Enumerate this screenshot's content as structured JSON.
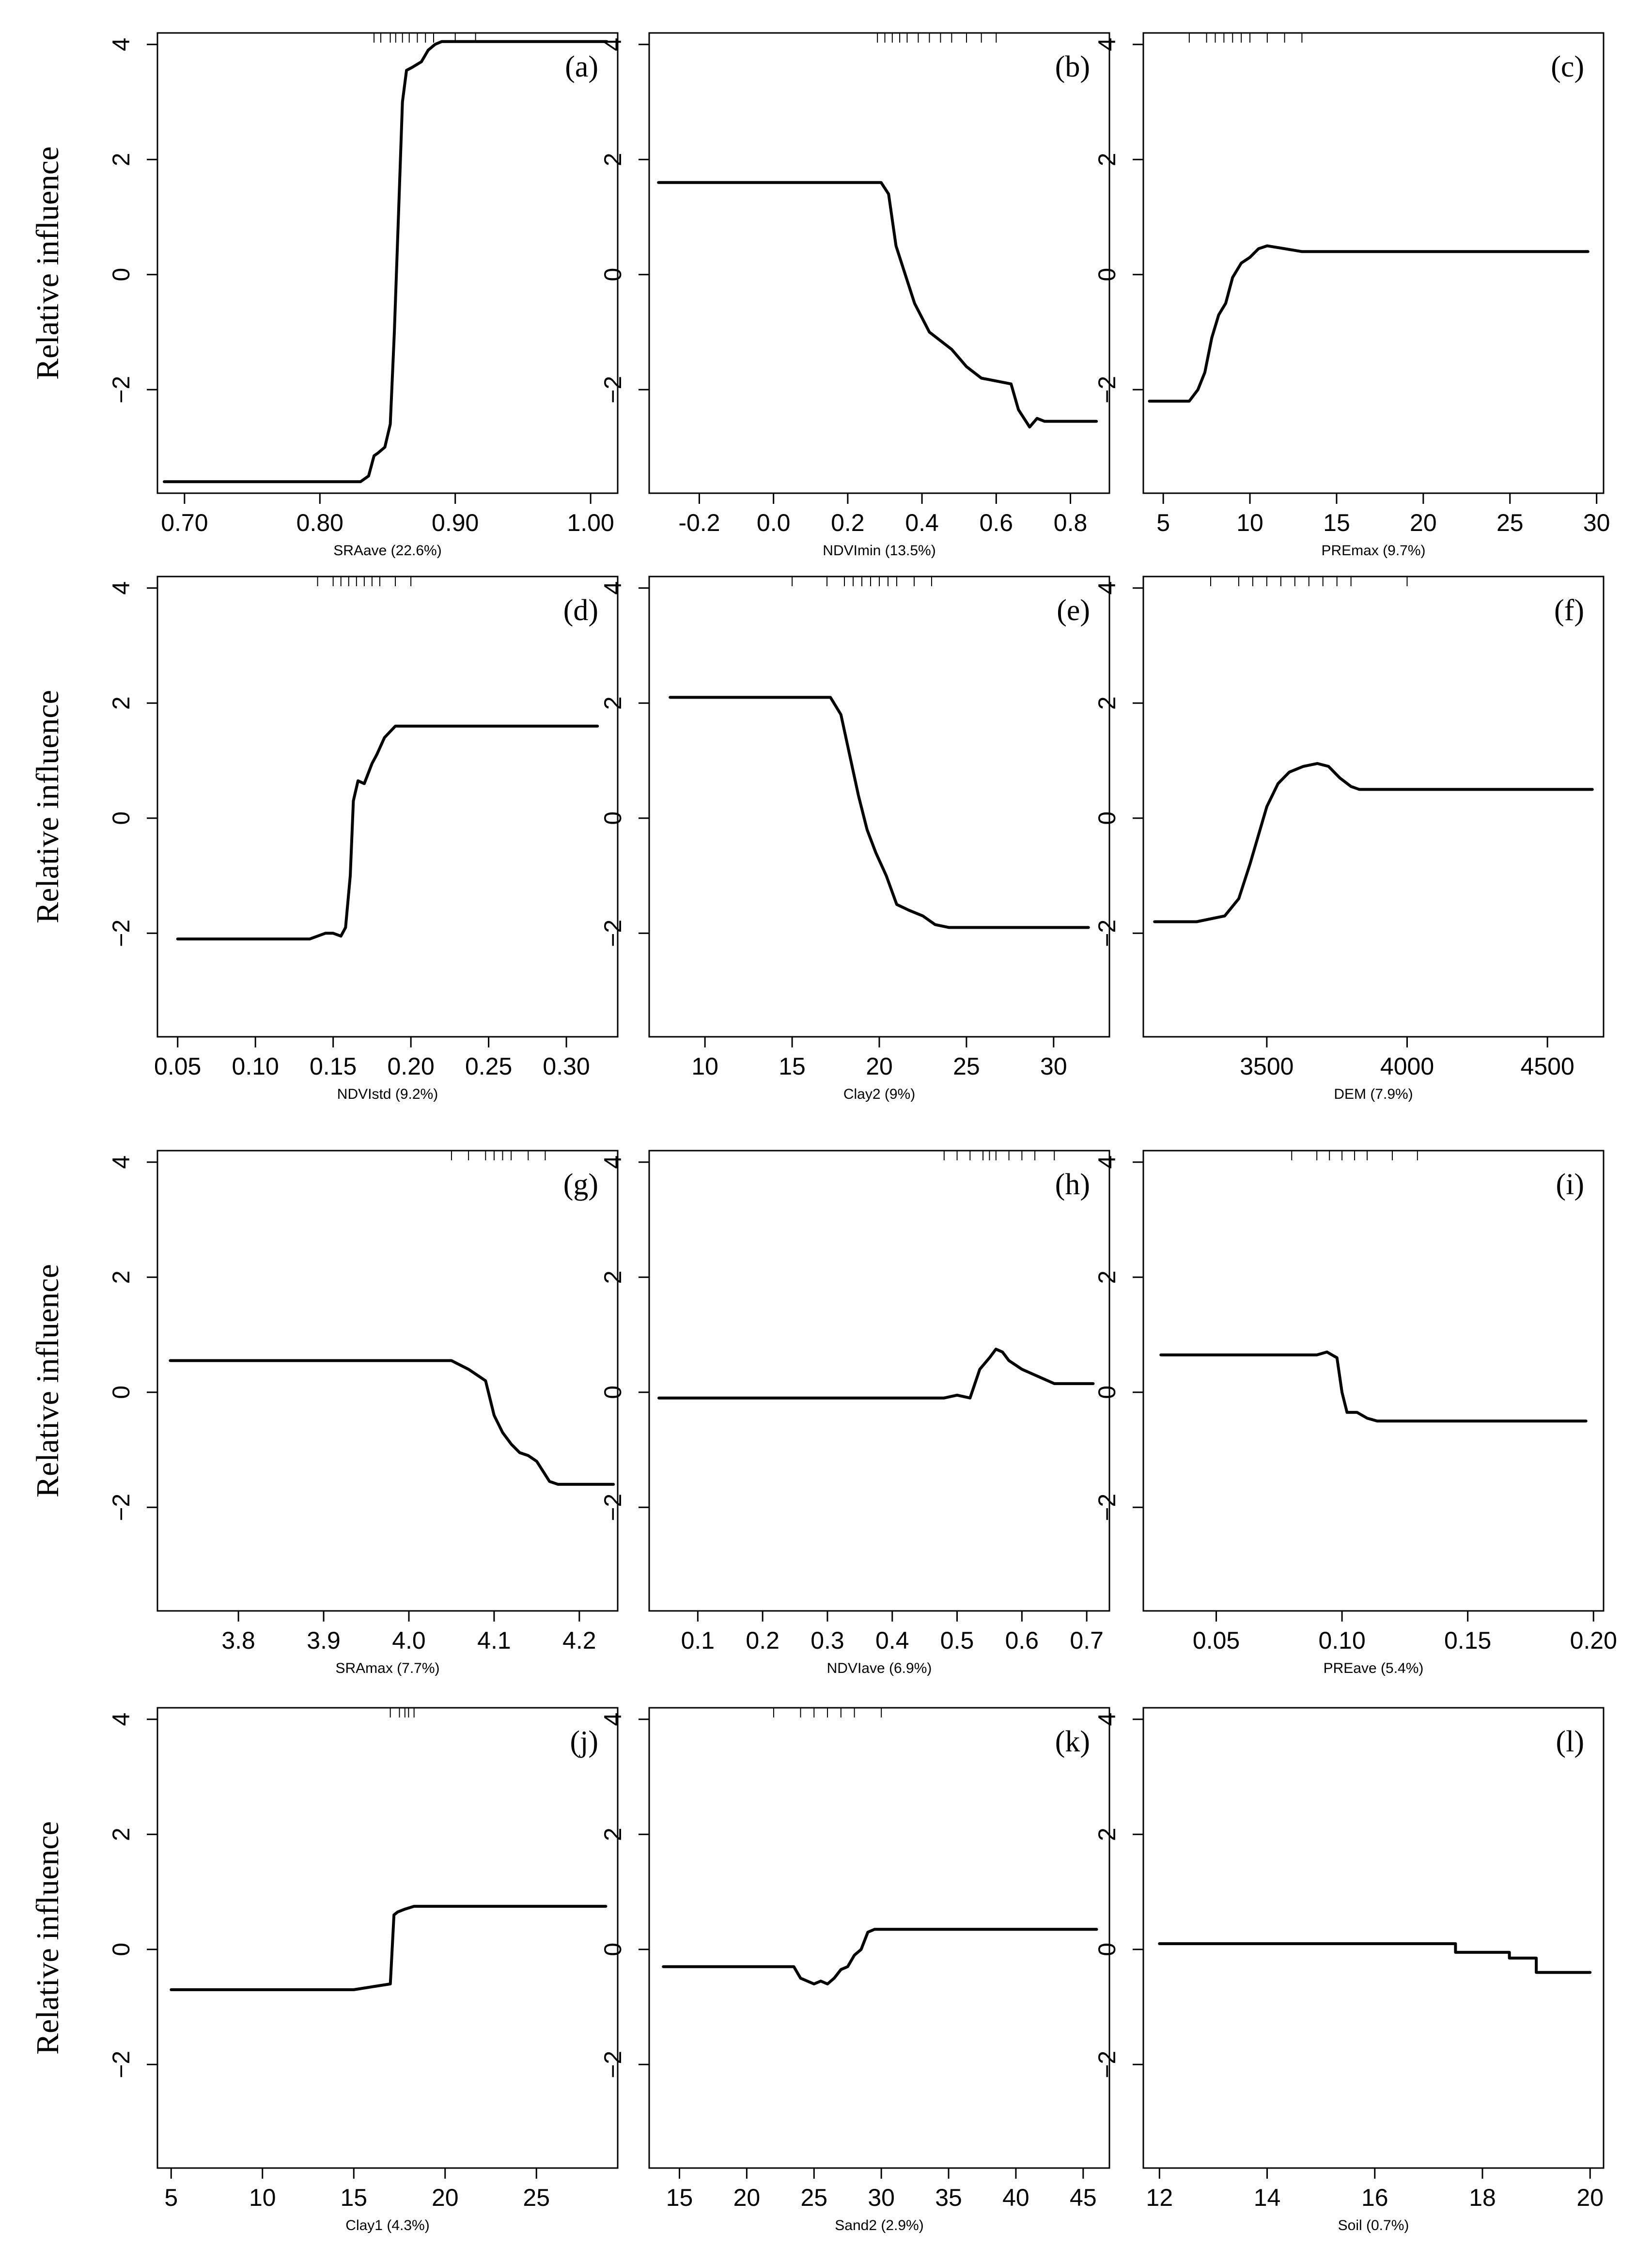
{
  "figure": {
    "ylabel": "Relative influence"
  },
  "chart_data": [
    {
      "type": "line",
      "panel": "(a)",
      "xlabel": "SRAave  (22.6%)",
      "ylabel": "Relative influence",
      "xlim": [
        0.68,
        1.02
      ],
      "ylim": [
        -3.8,
        4.2
      ],
      "xticks": [
        {
          "v": 0.7,
          "t": "0.70"
        },
        {
          "v": 0.8,
          "t": "0.80"
        },
        {
          "v": 0.9,
          "t": "0.90"
        },
        {
          "v": 1.0,
          "t": "1.00"
        }
      ],
      "yticks": [
        {
          "v": 4,
          "t": "4"
        },
        {
          "v": 2,
          "t": "2"
        },
        {
          "v": 0,
          "t": "0"
        },
        {
          "v": -2,
          "t": "−2"
        }
      ],
      "rug": [
        0.84,
        0.845,
        0.852,
        0.856,
        0.861,
        0.866,
        0.872,
        0.878,
        0.884,
        0.9,
        0.915
      ],
      "x": [
        0.685,
        0.83,
        0.836,
        0.84,
        0.843,
        0.848,
        0.852,
        0.855,
        0.858,
        0.861,
        0.864,
        0.868,
        0.875,
        0.88,
        0.885,
        0.89,
        1.012
      ],
      "y": [
        -3.6,
        -3.6,
        -3.5,
        -3.15,
        -3.1,
        -3.0,
        -2.6,
        -1.0,
        1.0,
        3.0,
        3.55,
        3.6,
        3.7,
        3.9,
        4.0,
        4.05,
        4.05
      ]
    },
    {
      "type": "line",
      "panel": "(b)",
      "xlabel": "NDVImin  (13.5%)",
      "ylabel": "Relative influence",
      "xlim": [
        -0.335,
        0.905
      ],
      "ylim": [
        -3.8,
        4.2
      ],
      "xticks": [
        {
          "v": -0.2,
          "t": "-0.2"
        },
        {
          "v": 0,
          "t": "0.0"
        },
        {
          "v": 0.2,
          "t": "0.2"
        },
        {
          "v": 0.4,
          "t": "0.4"
        },
        {
          "v": 0.6,
          "t": "0.6"
        },
        {
          "v": 0.8,
          "t": "0.8"
        }
      ],
      "yticks": [
        {
          "v": 4,
          "t": "4"
        },
        {
          "v": 2,
          "t": "2"
        },
        {
          "v": 0,
          "t": "0"
        },
        {
          "v": -2,
          "t": "−2"
        }
      ],
      "rug": [
        0.28,
        0.3,
        0.32,
        0.34,
        0.36,
        0.39,
        0.42,
        0.45,
        0.48,
        0.52,
        0.56,
        0.6
      ],
      "x": [
        -0.31,
        0.26,
        0.29,
        0.31,
        0.33,
        0.35,
        0.38,
        0.42,
        0.48,
        0.52,
        0.56,
        0.6,
        0.64,
        0.66,
        0.69,
        0.71,
        0.73,
        0.87
      ],
      "y": [
        1.6,
        1.6,
        1.6,
        1.4,
        0.5,
        0.1,
        -0.5,
        -1.0,
        -1.3,
        -1.6,
        -1.8,
        -1.85,
        -1.9,
        -2.35,
        -2.65,
        -2.5,
        -2.55,
        -2.55
      ]
    },
    {
      "type": "line",
      "panel": "(c)",
      "xlabel": "PREmax  (9.7%)",
      "ylabel": "Relative influence",
      "xlim": [
        3.85,
        30.4
      ],
      "ylim": [
        -3.8,
        4.2
      ],
      "xticks": [
        {
          "v": 5,
          "t": "5"
        },
        {
          "v": 10,
          "t": "10"
        },
        {
          "v": 15,
          "t": "15"
        },
        {
          "v": 20,
          "t": "20"
        },
        {
          "v": 25,
          "t": "25"
        },
        {
          "v": 30,
          "t": "30"
        }
      ],
      "yticks": [
        {
          "v": 4,
          "t": "4"
        },
        {
          "v": 2,
          "t": "2"
        },
        {
          "v": 0,
          "t": "0"
        },
        {
          "v": -2,
          "t": "−2"
        }
      ],
      "rug": [
        6.5,
        7.5,
        8.0,
        8.5,
        9.0,
        9.5,
        10.0,
        11.0,
        12.0,
        13.0
      ],
      "x": [
        4.2,
        6.5,
        7.0,
        7.4,
        7.8,
        8.2,
        8.6,
        9.0,
        9.5,
        10.0,
        10.5,
        11.0,
        12.0,
        13.0,
        29.5
      ],
      "y": [
        -2.2,
        -2.2,
        -2.0,
        -1.7,
        -1.1,
        -0.7,
        -0.5,
        -0.05,
        0.2,
        0.3,
        0.45,
        0.5,
        0.45,
        0.4,
        0.4
      ]
    },
    {
      "type": "line",
      "panel": "(d)",
      "xlabel": "NDVIstd  (9.2%)",
      "ylabel": "Relative influence",
      "xlim": [
        0.037,
        0.333
      ],
      "ylim": [
        -3.8,
        4.2
      ],
      "xticks": [
        {
          "v": 0.05,
          "t": "0.05"
        },
        {
          "v": 0.1,
          "t": "0.10"
        },
        {
          "v": 0.15,
          "t": "0.15"
        },
        {
          "v": 0.2,
          "t": "0.20"
        },
        {
          "v": 0.25,
          "t": "0.25"
        },
        {
          "v": 0.3,
          "t": "0.30"
        }
      ],
      "yticks": [
        {
          "v": 4,
          "t": "4"
        },
        {
          "v": 2,
          "t": "2"
        },
        {
          "v": 0,
          "t": "0"
        },
        {
          "v": -2,
          "t": "−2"
        }
      ],
      "rug": [
        0.14,
        0.15,
        0.155,
        0.16,
        0.165,
        0.17,
        0.175,
        0.18,
        0.19,
        0.2
      ],
      "x": [
        0.05,
        0.135,
        0.145,
        0.15,
        0.155,
        0.158,
        0.161,
        0.163,
        0.166,
        0.17,
        0.175,
        0.178,
        0.183,
        0.19,
        0.32
      ],
      "y": [
        -2.1,
        -2.1,
        -2.0,
        -2.0,
        -2.05,
        -1.9,
        -1.0,
        0.3,
        0.65,
        0.6,
        0.95,
        1.1,
        1.4,
        1.6,
        1.6
      ]
    },
    {
      "type": "line",
      "panel": "(e)",
      "xlabel": "Clay2  (9%)",
      "ylabel": "Relative influence",
      "xlim": [
        6.8,
        33.2
      ],
      "ylim": [
        -3.8,
        4.2
      ],
      "xticks": [
        {
          "v": 10,
          "t": "10"
        },
        {
          "v": 15,
          "t": "15"
        },
        {
          "v": 20,
          "t": "20"
        },
        {
          "v": 25,
          "t": "25"
        },
        {
          "v": 30,
          "t": "30"
        }
      ],
      "yticks": [
        {
          "v": 4,
          "t": "4"
        },
        {
          "v": 2,
          "t": "2"
        },
        {
          "v": 0,
          "t": "0"
        },
        {
          "v": -2,
          "t": "−2"
        }
      ],
      "rug": [
        15,
        17,
        18,
        18.5,
        19,
        19.5,
        20,
        20.5,
        21,
        22,
        23
      ],
      "x": [
        8,
        17.2,
        17.8,
        18.3,
        18.8,
        19.3,
        19.8,
        20.4,
        21,
        21.7,
        22.5,
        23.2,
        24,
        32
      ],
      "y": [
        2.1,
        2.1,
        1.8,
        1.1,
        0.4,
        -0.2,
        -0.6,
        -1.0,
        -1.5,
        -1.6,
        -1.7,
        -1.85,
        -1.9,
        -1.9
      ]
    },
    {
      "type": "line",
      "panel": "(f)",
      "xlabel": "DEM  (7.9%)",
      "ylabel": "Relative influence",
      "xlim": [
        3060,
        4700
      ],
      "ylim": [
        -3.8,
        4.2
      ],
      "xticks": [
        {
          "v": 3500,
          "t": "3500"
        },
        {
          "v": 4000,
          "t": "4000"
        },
        {
          "v": 4500,
          "t": "4500"
        }
      ],
      "yticks": [
        {
          "v": 4,
          "t": "4"
        },
        {
          "v": 2,
          "t": "2"
        },
        {
          "v": 0,
          "t": "0"
        },
        {
          "v": -2,
          "t": "−2"
        }
      ],
      "rug": [
        3300,
        3400,
        3450,
        3500,
        3550,
        3600,
        3650,
        3700,
        3750,
        3800,
        4000
      ],
      "x": [
        3100,
        3250,
        3350,
        3400,
        3440,
        3470,
        3500,
        3540,
        3580,
        3630,
        3680,
        3720,
        3760,
        3800,
        3830,
        4660
      ],
      "y": [
        -1.8,
        -1.8,
        -1.7,
        -1.4,
        -0.8,
        -0.3,
        0.2,
        0.6,
        0.8,
        0.9,
        0.95,
        0.9,
        0.7,
        0.55,
        0.5,
        0.5
      ]
    },
    {
      "type": "line",
      "panel": "(g)",
      "xlabel": "SRAmax  (7.7%)",
      "ylabel": "Relative influence",
      "xlim": [
        3.705,
        4.245
      ],
      "ylim": [
        -3.8,
        4.2
      ],
      "xticks": [
        {
          "v": 3.8,
          "t": "3.8"
        },
        {
          "v": 3.9,
          "t": "3.9"
        },
        {
          "v": 4.0,
          "t": "4.0"
        },
        {
          "v": 4.1,
          "t": "4.1"
        },
        {
          "v": 4.2,
          "t": "4.2"
        }
      ],
      "yticks": [
        {
          "v": 4,
          "t": "4"
        },
        {
          "v": 2,
          "t": "2"
        },
        {
          "v": 0,
          "t": "0"
        },
        {
          "v": -2,
          "t": "−2"
        }
      ],
      "rug": [
        4.05,
        4.07,
        4.09,
        4.1,
        4.11,
        4.12,
        4.14,
        4.16
      ],
      "x": [
        3.72,
        4.05,
        4.07,
        4.09,
        4.1,
        4.11,
        4.12,
        4.13,
        4.14,
        4.15,
        4.165,
        4.175,
        4.19,
        4.24
      ],
      "y": [
        0.55,
        0.55,
        0.4,
        0.2,
        -0.4,
        -0.7,
        -0.9,
        -1.05,
        -1.1,
        -1.2,
        -1.55,
        -1.6,
        -1.6,
        -1.6
      ]
    },
    {
      "type": "line",
      "panel": "(h)",
      "xlabel": "NDVIave  (6.9%)",
      "ylabel": "Relative influence",
      "xlim": [
        0.025,
        0.735
      ],
      "ylim": [
        -3.8,
        4.2
      ],
      "xticks": [
        {
          "v": 0.1,
          "t": "0.1"
        },
        {
          "v": 0.2,
          "t": "0.2"
        },
        {
          "v": 0.3,
          "t": "0.3"
        },
        {
          "v": 0.4,
          "t": "0.4"
        },
        {
          "v": 0.5,
          "t": "0.5"
        },
        {
          "v": 0.6,
          "t": "0.6"
        },
        {
          "v": 0.7,
          "t": "0.7"
        }
      ],
      "yticks": [
        {
          "v": 4,
          "t": "4"
        },
        {
          "v": 2,
          "t": "2"
        },
        {
          "v": 0,
          "t": "0"
        },
        {
          "v": -2,
          "t": "−2"
        }
      ],
      "rug": [
        0.48,
        0.5,
        0.52,
        0.54,
        0.55,
        0.56,
        0.58,
        0.6,
        0.62,
        0.65
      ],
      "x": [
        0.04,
        0.48,
        0.5,
        0.52,
        0.535,
        0.55,
        0.56,
        0.57,
        0.58,
        0.6,
        0.62,
        0.65,
        0.71
      ],
      "y": [
        -0.1,
        -0.1,
        -0.05,
        -0.1,
        0.4,
        0.6,
        0.75,
        0.7,
        0.55,
        0.4,
        0.3,
        0.15,
        0.15
      ]
    },
    {
      "type": "line",
      "panel": "(i)",
      "xlabel": "PREave  (5.4%)",
      "ylabel": "Relative influence",
      "xlim": [
        0.021,
        0.204
      ],
      "ylim": [
        -3.8,
        4.2
      ],
      "xticks": [
        {
          "v": 0.05,
          "t": "0.05"
        },
        {
          "v": 0.1,
          "t": "0.10"
        },
        {
          "v": 0.15,
          "t": "0.15"
        },
        {
          "v": 0.2,
          "t": "0.20"
        }
      ],
      "yticks": [
        {
          "v": 4,
          "t": "4"
        },
        {
          "v": 2,
          "t": "2"
        },
        {
          "v": 0,
          "t": "0"
        },
        {
          "v": -2,
          "t": "−2"
        }
      ],
      "rug": [
        0.08,
        0.09,
        0.095,
        0.1,
        0.105,
        0.11,
        0.12,
        0.13
      ],
      "x": [
        0.028,
        0.09,
        0.094,
        0.098,
        0.1,
        0.102,
        0.106,
        0.11,
        0.114,
        0.197
      ],
      "y": [
        0.65,
        0.65,
        0.7,
        0.6,
        0.0,
        -0.35,
        -0.35,
        -0.45,
        -0.5,
        -0.5
      ]
    },
    {
      "type": "line",
      "panel": "(j)",
      "xlabel": "Clay1  (4.3%)",
      "ylabel": "Relative influence",
      "xlim": [
        4.25,
        29.45
      ],
      "ylim": [
        -3.8,
        4.2
      ],
      "xticks": [
        {
          "v": 5,
          "t": "5"
        },
        {
          "v": 10,
          "t": "10"
        },
        {
          "v": 15,
          "t": "15"
        },
        {
          "v": 20,
          "t": "20"
        },
        {
          "v": 25,
          "t": "25"
        }
      ],
      "yticks": [
        {
          "v": 4,
          "t": "4"
        },
        {
          "v": 2,
          "t": "2"
        },
        {
          "v": 0,
          "t": "0"
        },
        {
          "v": -2,
          "t": "−2"
        }
      ],
      "rug": [
        17.0,
        17.5,
        17.8,
        18.0,
        18.3
      ],
      "x": [
        5,
        15,
        16,
        17,
        17.2,
        17.4,
        17.8,
        18.3,
        28.8
      ],
      "y": [
        -0.7,
        -0.7,
        -0.65,
        -0.6,
        0.6,
        0.65,
        0.7,
        0.75,
        0.75
      ]
    },
    {
      "type": "line",
      "panel": "(k)",
      "xlabel": "Sand2  (2.9%)",
      "ylabel": "Relative influence",
      "xlim": [
        12.75,
        46.95
      ],
      "ylim": [
        -3.8,
        4.2
      ],
      "xticks": [
        {
          "v": 15,
          "t": "15"
        },
        {
          "v": 20,
          "t": "20"
        },
        {
          "v": 25,
          "t": "25"
        },
        {
          "v": 30,
          "t": "30"
        },
        {
          "v": 35,
          "t": "35"
        },
        {
          "v": 40,
          "t": "40"
        },
        {
          "v": 45,
          "t": "45"
        }
      ],
      "yticks": [
        {
          "v": 4,
          "t": "4"
        },
        {
          "v": 2,
          "t": "2"
        },
        {
          "v": 0,
          "t": "0"
        },
        {
          "v": -2,
          "t": "−2"
        }
      ],
      "rug": [
        22,
        24,
        25,
        26,
        27,
        28,
        30
      ],
      "x": [
        13.8,
        23.5,
        24,
        24.5,
        25,
        25.5,
        26,
        26.5,
        27,
        27.5,
        28,
        28.5,
        29,
        29.5,
        46
      ],
      "y": [
        -0.3,
        -0.3,
        -0.5,
        -0.55,
        -0.6,
        -0.55,
        -0.6,
        -0.5,
        -0.35,
        -0.3,
        -0.1,
        0.0,
        0.3,
        0.35,
        0.35
      ]
    },
    {
      "type": "line",
      "panel": "(l)",
      "xlabel": "Soil  (0.7%)",
      "ylabel": "Relative influence",
      "xlim": [
        11.7,
        20.25
      ],
      "ylim": [
        -3.8,
        4.2
      ],
      "xticks": [
        {
          "v": 12,
          "t": "12"
        },
        {
          "v": 14,
          "t": "14"
        },
        {
          "v": 16,
          "t": "16"
        },
        {
          "v": 18,
          "t": "18"
        },
        {
          "v": 20,
          "t": "20"
        }
      ],
      "yticks": [
        {
          "v": 4,
          "t": "4"
        },
        {
          "v": 2,
          "t": "2"
        },
        {
          "v": 0,
          "t": "0"
        },
        {
          "v": -2,
          "t": "−2"
        }
      ],
      "rug": [],
      "x": [
        12,
        17.5,
        17.5,
        18.5,
        18.5,
        19,
        19,
        20
      ],
      "y": [
        0.1,
        0.1,
        -0.05,
        -0.05,
        -0.15,
        -0.15,
        -0.4,
        -0.4
      ]
    }
  ]
}
